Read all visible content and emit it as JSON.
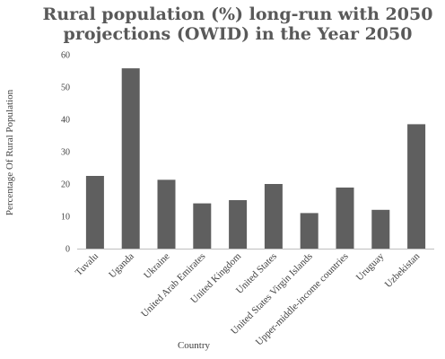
{
  "chart_data": {
    "type": "bar",
    "title_lines": [
      "Rural population (%) long-run with 2050",
      "projections (OWID) in the Year 2050"
    ],
    "xlabel": "Country",
    "ylabel": "Percentage Of Rural Population",
    "ylim": [
      0,
      60
    ],
    "yticks": [
      0,
      10,
      20,
      30,
      40,
      50,
      60
    ],
    "grid": false,
    "categories": [
      "Tuvalu",
      "Uganda",
      "Ukraine",
      "United Arab Emirates",
      "United Kingdom",
      "United States",
      "United States Virgin Islands",
      "Upper-middle-income countries",
      "Uruguay",
      "Uzbekistan"
    ],
    "values": [
      22.5,
      55.8,
      21.3,
      14.0,
      15.0,
      20.0,
      11.0,
      18.9,
      12.0,
      38.5
    ],
    "bar_color": "#5f5f5f"
  }
}
